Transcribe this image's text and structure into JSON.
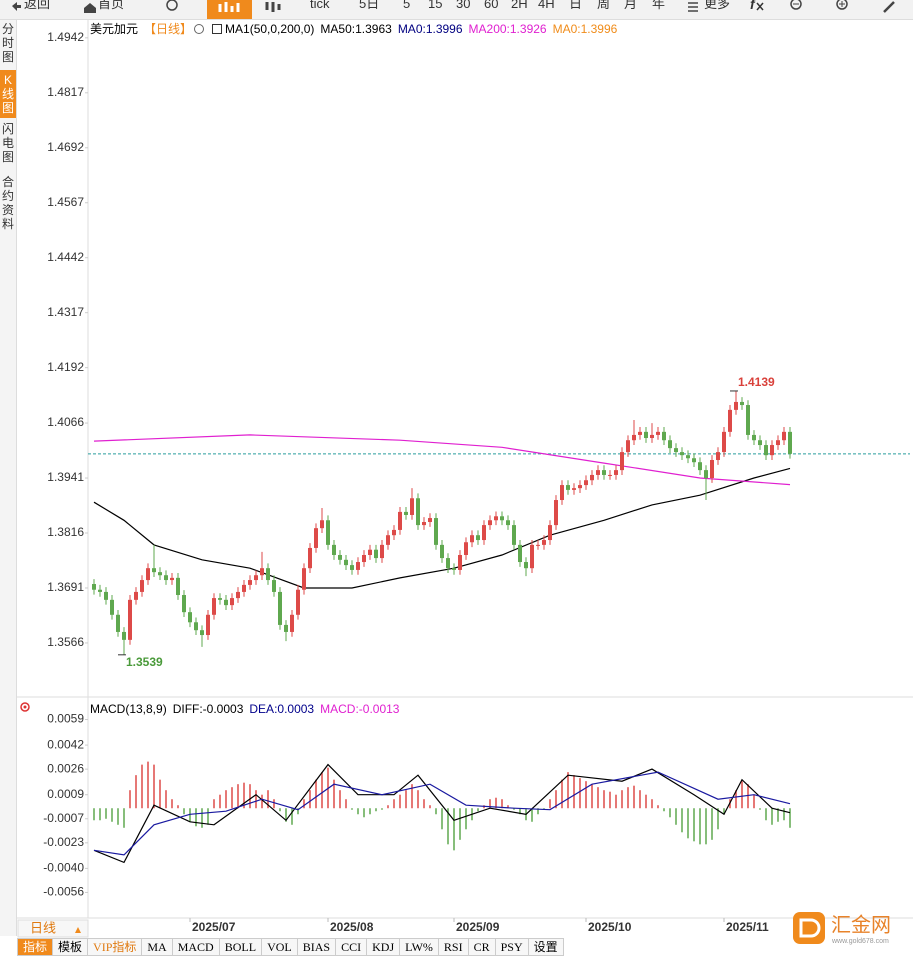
{
  "toolbar": {
    "items": [
      "返回",
      "首页",
      "tick",
      "5日",
      "5",
      "15",
      "30",
      "60",
      "2H",
      "4H",
      "日",
      "周",
      "月",
      "年",
      "更多"
    ]
  },
  "sidebar": {
    "items": [
      "分时图",
      "K线图",
      "闪电图",
      "合约资料"
    ],
    "active": 1
  },
  "chart_data": [
    {
      "type": "candlestick",
      "title": "美元加元",
      "period": "【日线】",
      "indicator": "MA1(50,0,200,0)",
      "legend": [
        {
          "text": "MA50:1.3963",
          "color": "#000000"
        },
        {
          "text": "MA0:1.3996",
          "color": "#000080"
        },
        {
          "text": "MA200:1.3926",
          "color": "#e020d0"
        },
        {
          "text": "MA0:1.3996",
          "color": "#f08c1a"
        }
      ],
      "xlim": [
        -1,
        136
      ],
      "ylim": [
        1.3459,
        1.4978
      ],
      "yticks": [
        1.4942,
        1.4817,
        1.4692,
        1.4567,
        1.4442,
        1.4317,
        1.4192,
        1.4066,
        1.3941,
        1.3816,
        1.3691,
        1.3566
      ],
      "up_color": "#dd4a48",
      "down_color": "#5fa84f",
      "open": [
        1.37,
        1.3687,
        1.3682,
        1.3664,
        1.363,
        1.3591,
        1.3573,
        1.3664,
        1.3682,
        1.3709,
        1.3736,
        1.3727,
        1.372,
        1.3709,
        1.3714,
        1.3675,
        1.3636,
        1.3613,
        1.3595,
        1.3584,
        1.363,
        1.3668,
        1.3664,
        1.3652,
        1.3668,
        1.3682,
        1.3698,
        1.3709,
        1.372,
        1.3736,
        1.3709,
        1.3682,
        1.3607,
        1.3591,
        1.363,
        1.3687,
        1.3736,
        1.3782,
        1.3827,
        1.3845,
        1.3789,
        1.3766,
        1.3755,
        1.3743,
        1.3732,
        1.375,
        1.3766,
        1.3778,
        1.3759,
        1.3789,
        1.3811,
        1.3823,
        1.3864,
        1.3857,
        1.3895,
        1.3834,
        1.3841,
        1.385,
        1.3789,
        1.3759,
        1.3736,
        1.3732,
        1.3766,
        1.3795,
        1.3811,
        1.38,
        1.3834,
        1.3845,
        1.3854,
        1.3845,
        1.3834,
        1.3789,
        1.375,
        1.3736,
        1.3789,
        1.3789,
        1.38,
        1.3834,
        1.3891,
        1.3925,
        1.3914,
        1.3918,
        1.3925,
        1.3936,
        1.3948,
        1.3959,
        1.3948,
        1.3948,
        1.3959,
        1.4,
        1.4027,
        1.4039,
        1.4046,
        1.4032,
        1.4039,
        1.4046,
        1.4027,
        1.4009,
        1.4,
        1.3993,
        1.3986,
        1.3977,
        1.3959,
        1.3941,
        1.3982,
        1.4,
        1.4046,
        1.4096,
        1.4114,
        1.4107,
        1.4039,
        1.4027,
        1.4016,
        1.3993,
        1.4016,
        1.4027,
        1.4046
      ],
      "high": [
        1.3711,
        1.3698,
        1.3693,
        1.3675,
        1.3641,
        1.3602,
        1.3675,
        1.3693,
        1.372,
        1.3747,
        1.3789,
        1.3738,
        1.3731,
        1.3725,
        1.3725,
        1.3686,
        1.3647,
        1.3624,
        1.3606,
        1.3641,
        1.3679,
        1.3679,
        1.3675,
        1.3679,
        1.3693,
        1.3709,
        1.372,
        1.3731,
        1.3773,
        1.3747,
        1.372,
        1.3693,
        1.3618,
        1.3641,
        1.3698,
        1.3747,
        1.3793,
        1.3838,
        1.3873,
        1.3856,
        1.38,
        1.3777,
        1.3766,
        1.3754,
        1.3761,
        1.3777,
        1.3789,
        1.3789,
        1.38,
        1.3822,
        1.3834,
        1.3875,
        1.3875,
        1.3918,
        1.3906,
        1.3852,
        1.3861,
        1.3861,
        1.38,
        1.377,
        1.3747,
        1.3777,
        1.3806,
        1.3822,
        1.3822,
        1.3845,
        1.3856,
        1.3865,
        1.3865,
        1.3856,
        1.3845,
        1.38,
        1.3761,
        1.38,
        1.38,
        1.3811,
        1.3845,
        1.3902,
        1.3936,
        1.3936,
        1.3929,
        1.3936,
        1.3947,
        1.3959,
        1.397,
        1.397,
        1.3959,
        1.397,
        1.4011,
        1.4038,
        1.4073,
        1.4057,
        1.4057,
        1.4066,
        1.4057,
        1.4057,
        1.4038,
        1.402,
        1.4011,
        1.4004,
        1.3997,
        1.3988,
        1.397,
        1.3993,
        1.4011,
        1.4057,
        1.4107,
        1.4139,
        1.4125,
        1.4118,
        1.405,
        1.4038,
        1.4027,
        1.4027,
        1.4038,
        1.4057,
        1.4057
      ],
      "low": [
        1.3676,
        1.3671,
        1.3653,
        1.3619,
        1.358,
        1.3539,
        1.3562,
        1.3653,
        1.3671,
        1.3698,
        1.3716,
        1.3709,
        1.3698,
        1.3698,
        1.3664,
        1.3625,
        1.3602,
        1.3584,
        1.3557,
        1.3573,
        1.3619,
        1.3653,
        1.3641,
        1.3641,
        1.3657,
        1.3671,
        1.3687,
        1.3698,
        1.3709,
        1.3698,
        1.3671,
        1.3596,
        1.357,
        1.358,
        1.3619,
        1.3676,
        1.3725,
        1.3771,
        1.3816,
        1.3778,
        1.3755,
        1.3744,
        1.3732,
        1.3721,
        1.3721,
        1.3739,
        1.3755,
        1.3748,
        1.3748,
        1.3778,
        1.38,
        1.3812,
        1.3846,
        1.3846,
        1.3823,
        1.3823,
        1.383,
        1.3778,
        1.3748,
        1.3725,
        1.3721,
        1.3721,
        1.3755,
        1.3784,
        1.3789,
        1.3789,
        1.3823,
        1.3834,
        1.3834,
        1.3823,
        1.3778,
        1.3739,
        1.3718,
        1.3725,
        1.3778,
        1.3778,
        1.3789,
        1.3823,
        1.388,
        1.3903,
        1.3903,
        1.3907,
        1.3914,
        1.3925,
        1.3937,
        1.3937,
        1.3937,
        1.3937,
        1.3948,
        1.3989,
        1.4016,
        1.4028,
        1.4021,
        1.4021,
        1.4028,
        1.4016,
        1.3998,
        1.3989,
        1.3982,
        1.3975,
        1.3966,
        1.3948,
        1.3891,
        1.393,
        1.3971,
        1.3989,
        1.4035,
        1.4085,
        1.4096,
        1.4028,
        1.4016,
        1.4005,
        1.3982,
        1.3982,
        1.4005,
        1.4016,
        1.3985
      ],
      "close": [
        1.3687,
        1.3682,
        1.3664,
        1.363,
        1.3591,
        1.3573,
        1.3664,
        1.3682,
        1.3709,
        1.3736,
        1.3727,
        1.372,
        1.3709,
        1.3714,
        1.3675,
        1.3636,
        1.3613,
        1.3595,
        1.3584,
        1.363,
        1.3668,
        1.3664,
        1.3652,
        1.3668,
        1.3682,
        1.3698,
        1.3709,
        1.372,
        1.3736,
        1.3709,
        1.3682,
        1.3607,
        1.3591,
        1.363,
        1.3687,
        1.3736,
        1.3782,
        1.3827,
        1.3845,
        1.3789,
        1.3766,
        1.3755,
        1.3743,
        1.3732,
        1.375,
        1.3766,
        1.3778,
        1.3759,
        1.3789,
        1.3811,
        1.3823,
        1.3864,
        1.3857,
        1.3895,
        1.3834,
        1.3841,
        1.385,
        1.3789,
        1.3759,
        1.3736,
        1.3732,
        1.3766,
        1.3795,
        1.3811,
        1.38,
        1.3834,
        1.3845,
        1.3854,
        1.3845,
        1.3834,
        1.3789,
        1.375,
        1.3736,
        1.3789,
        1.3789,
        1.38,
        1.3834,
        1.3891,
        1.3925,
        1.3914,
        1.3918,
        1.3925,
        1.3936,
        1.3948,
        1.3959,
        1.3948,
        1.3948,
        1.3959,
        1.4,
        1.4027,
        1.4039,
        1.4046,
        1.4032,
        1.4039,
        1.4046,
        1.4027,
        1.4009,
        1.4,
        1.3993,
        1.3986,
        1.3977,
        1.3959,
        1.3941,
        1.3982,
        1.4,
        1.4046,
        1.4096,
        1.4114,
        1.4107,
        1.4039,
        1.4027,
        1.4016,
        1.3993,
        1.4016,
        1.4027,
        1.4046,
        1.3996
      ],
      "lines": [
        {
          "color": "#000000",
          "x": [
            0,
            5,
            10,
            18,
            26,
            35,
            43,
            51,
            60,
            68,
            76,
            85,
            93,
            101,
            110,
            116
          ],
          "values": [
            1.3886,
            1.3845,
            1.3789,
            1.3755,
            1.3736,
            1.3691,
            1.3691,
            1.3714,
            1.3736,
            1.3766,
            1.3811,
            1.3845,
            1.388,
            1.3902,
            1.3941,
            1.3963
          ]
        },
        {
          "color": "#e020d0",
          "x": [
            0,
            26,
            51,
            68,
            85,
            101,
            116
          ],
          "values": [
            1.4025,
            1.4039,
            1.4027,
            1.4011,
            1.3975,
            1.3941,
            1.3926
          ]
        }
      ],
      "reference_line": {
        "value": 1.3996,
        "color": "#2a9d9d"
      },
      "annotations": [
        {
          "x": 107,
          "value": 1.4139,
          "color": "#d9403a",
          "side": "top"
        },
        {
          "x": 5,
          "value": 1.3539,
          "color": "#4a9a3a",
          "side": "bottom"
        }
      ]
    },
    {
      "type": "macd",
      "title": "MACD(13,8,9)",
      "legend": [
        {
          "text": "DIFF:-0.0003",
          "color": "#000000"
        },
        {
          "text": "DEA:0.0003",
          "color": "#00008b"
        },
        {
          "text": "MACD:-0.0013",
          "color": "#e020d0"
        }
      ],
      "xlim": [
        -1,
        136
      ],
      "ylim": [
        -0.0071,
        0.0064
      ],
      "yticks": [
        0.0059,
        0.0042,
        0.0026,
        0.0009,
        -0.0007,
        -0.0023,
        {
          "value": -0.004,
          "label": "-0.0040"
        },
        -0.0056
      ],
      "xticks": [
        {
          "value": 16,
          "label": "2025/07"
        },
        {
          "value": 39,
          "label": "2025/08"
        },
        {
          "value": 60,
          "label": "2025/09"
        },
        {
          "value": 82,
          "label": "2025/10"
        },
        {
          "value": 105,
          "label": "2025/11"
        }
      ],
      "up_color": "#dd4a48",
      "down_color": "#5fa84f",
      "histogram": [
        -0.0008,
        -0.0008,
        -0.0007,
        -0.0009,
        -0.0011,
        -0.0013,
        0.0012,
        0.0022,
        0.0029,
        0.0031,
        0.0029,
        0.0019,
        0.0012,
        0.0006,
        0.0002,
        -0.0004,
        -0.0009,
        -0.0012,
        -0.0013,
        -0.0011,
        0.0006,
        0.0009,
        0.0012,
        0.0014,
        0.0016,
        0.0017,
        0.0016,
        0.0012,
        0.0009,
        0.0012,
        0.0006,
        -0.0002,
        -0.0009,
        -0.0011,
        -0.0004,
        0.0006,
        0.0012,
        0.0019,
        0.0024,
        0.0027,
        0.0019,
        0.0012,
        0.0006,
        -0.0001,
        -0.0004,
        -0.0006,
        -0.0004,
        -0.0002,
        -0.0001,
        0.0002,
        0.0006,
        0.0009,
        0.0012,
        0.0016,
        0.0012,
        0.0006,
        0.0002,
        -0.0004,
        -0.0014,
        -0.0024,
        -0.0028,
        -0.0021,
        -0.0014,
        -0.0008,
        -0.0002,
        0.0002,
        0.0006,
        0.0007,
        0.0006,
        0.0002,
        -0.0001,
        -0.0004,
        -0.0008,
        -0.0009,
        -0.0004,
        -0.0001,
        0.0006,
        0.0012,
        0.0019,
        0.0024,
        0.0022,
        0.002,
        0.0018,
        0.0016,
        0.0014,
        0.0012,
        0.0011,
        0.0009,
        0.0012,
        0.0014,
        0.0015,
        0.0012,
        0.0009,
        0.0006,
        0.0002,
        -0.0002,
        -0.0006,
        -0.0011,
        -0.0016,
        -0.002,
        -0.0022,
        -0.0024,
        -0.0024,
        -0.0021,
        -0.0014,
        -0.0004,
        0.0006,
        0.0012,
        0.0018,
        0.0016,
        0.0009,
        -0.0001,
        -0.0008,
        -0.0011,
        -0.0009,
        -0.0008,
        -0.0013
      ],
      "lines": [
        {
          "color": "#000000",
          "x": [
            0,
            5,
            10,
            16,
            20,
            27,
            32,
            39,
            44,
            50,
            54,
            60,
            66,
            72,
            79,
            88,
            93,
            100,
            105,
            108,
            113,
            116
          ],
          "values": [
            -0.0028,
            -0.0036,
            0.0002,
            -0.0009,
            -0.0011,
            0.0009,
            -0.0008,
            0.0029,
            0.0009,
            0.0009,
            0.0022,
            -0.0008,
            0.0,
            -0.0004,
            0.0022,
            0.0018,
            0.0026,
            0.0009,
            -0.0004,
            0.0019,
            0.0,
            -0.0003
          ]
        },
        {
          "color": "#1a1aa0",
          "x": [
            0,
            5,
            10,
            16,
            22,
            28,
            34,
            40,
            48,
            56,
            62,
            70,
            76,
            83,
            94,
            104,
            110,
            116
          ],
          "values": [
            -0.0028,
            -0.0031,
            -0.0011,
            -0.0004,
            -0.0002,
            0.0006,
            -0.0001,
            0.0016,
            0.0009,
            0.0016,
            0.0002,
            0.0,
            -0.0001,
            0.0016,
            0.0024,
            0.0006,
            0.0009,
            0.0003
          ]
        }
      ]
    }
  ],
  "bottom_bar": {
    "period": "日线",
    "tabs": [
      "指标",
      "模板",
      "VIP指标",
      "MA",
      "MACD",
      "BOLL",
      "VOL",
      "BIAS",
      "CCI",
      "KDJ",
      "LW%",
      "RSI",
      "CR",
      "PSY",
      "设置"
    ],
    "active": 0
  },
  "logo": {
    "name": "汇金网",
    "url": "www.gold678.com"
  }
}
